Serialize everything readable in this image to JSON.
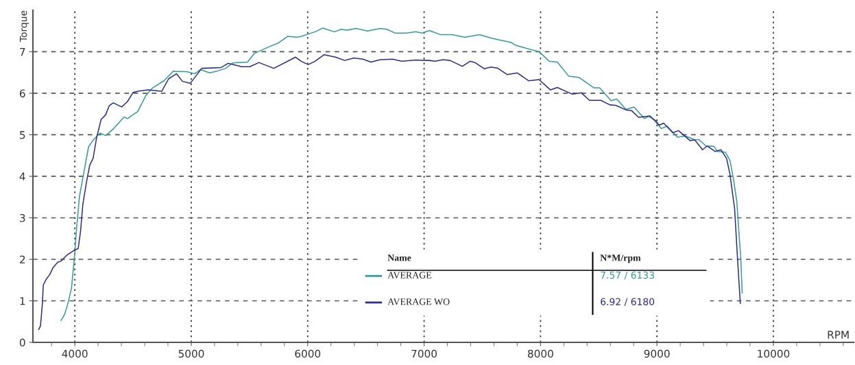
{
  "chart_data": {
    "type": "line",
    "xlabel": "RPM",
    "ylabel": "Torque",
    "xlim": [
      3640,
      10690
    ],
    "ylim": [
      0,
      8
    ],
    "xticks": [
      {
        "value": 3800,
        "label": null
      },
      4000,
      {
        "value": 4200,
        "label": null
      },
      {
        "value": 4400,
        "label": null
      },
      {
        "value": 4600,
        "label": null
      },
      {
        "value": 4800,
        "label": null
      },
      5000,
      {
        "value": 5200,
        "label": null
      },
      {
        "value": 5400,
        "label": null
      },
      {
        "value": 5600,
        "label": null
      },
      {
        "value": 5800,
        "label": null
      },
      6000,
      {
        "value": 6200,
        "label": null
      },
      {
        "value": 6400,
        "label": null
      },
      {
        "value": 6600,
        "label": null
      },
      {
        "value": 6800,
        "label": null
      },
      7000,
      {
        "value": 7200,
        "label": null
      },
      {
        "value": 7400,
        "label": null
      },
      {
        "value": 7600,
        "label": null
      },
      {
        "value": 7800,
        "label": null
      },
      8000,
      {
        "value": 8200,
        "label": null
      },
      {
        "value": 8400,
        "label": null
      },
      {
        "value": 8600,
        "label": null
      },
      {
        "value": 8800,
        "label": null
      },
      9000,
      {
        "value": 9200,
        "label": null
      },
      {
        "value": 9400,
        "label": null
      },
      {
        "value": 9600,
        "label": null
      },
      {
        "value": 9800,
        "label": null
      },
      10000,
      {
        "value": 10200,
        "label": null
      },
      {
        "value": 10400,
        "label": null
      },
      {
        "value": 10600,
        "label": null
      }
    ],
    "yticks": [
      0,
      1,
      2,
      3,
      4,
      5,
      6,
      7
    ],
    "grid": true,
    "legend": "bottom",
    "marker": "none",
    "line_style": "solid",
    "annotations": [
      "Name",
      "N*M/rpm",
      "7.57 / 6133",
      "6.92 / 6180"
    ],
    "series": [
      {
        "name": "AVERAGE",
        "color": "#2e9e96",
        "x": [
          3882,
          3912,
          3941,
          3971,
          3996,
          4016,
          4039,
          4078,
          4118,
          4157,
          4216,
          4265,
          4334,
          4423,
          4452,
          4540,
          4609,
          4668,
          4766,
          4845,
          4962,
          5031,
          5080,
          5159,
          5218,
          5296,
          5355,
          5483,
          5542,
          5669,
          5748,
          5827,
          5905,
          5945,
          6063,
          6131,
          6229,
          6288,
          6338,
          6416,
          6514,
          6622,
          6681,
          6750,
          6848,
          6927,
          6986,
          7045,
          7143,
          7241,
          7349,
          7477,
          7575,
          7653,
          7742,
          7791,
          7987,
          8076,
          8144,
          8243,
          8331,
          8459,
          8508,
          8606,
          8655,
          8734,
          8803,
          8891,
          8940,
          8989,
          9038,
          9087,
          9176,
          9245,
          9323,
          9362,
          9421,
          9490,
          9520,
          9588,
          9627,
          9657,
          9686,
          9706,
          9720,
          9732
        ],
        "values": [
          0.53,
          0.67,
          0.94,
          1.3,
          2.02,
          2.78,
          3.5,
          4.1,
          4.71,
          4.87,
          5.04,
          4.98,
          5.15,
          5.43,
          5.39,
          5.56,
          5.94,
          6.13,
          6.3,
          6.53,
          6.52,
          6.47,
          6.57,
          6.49,
          6.53,
          6.6,
          6.73,
          6.75,
          6.96,
          7.12,
          7.21,
          7.37,
          7.35,
          7.37,
          7.48,
          7.57,
          7.48,
          7.54,
          7.52,
          7.56,
          7.5,
          7.56,
          7.54,
          7.45,
          7.45,
          7.48,
          7.45,
          7.51,
          7.41,
          7.41,
          7.35,
          7.41,
          7.33,
          7.28,
          7.23,
          7.15,
          7.0,
          6.77,
          6.75,
          6.41,
          6.38,
          6.13,
          6.13,
          5.82,
          5.86,
          5.61,
          5.67,
          5.39,
          5.46,
          5.31,
          5.15,
          5.21,
          4.94,
          4.97,
          4.88,
          4.88,
          4.73,
          4.72,
          4.6,
          4.58,
          4.38,
          3.94,
          3.39,
          2.57,
          2.02,
          1.19
        ]
      },
      {
        "name": "AVERAGE WO",
        "color": "#2a2a9a",
        "x": [
          3690,
          3705,
          3721,
          3729,
          3754,
          3784,
          3813,
          3853,
          3882,
          3931,
          3990,
          4029,
          4049,
          4069,
          4102,
          4128,
          4157,
          4187,
          4226,
          4265,
          4295,
          4330,
          4403,
          4452,
          4501,
          4540,
          4629,
          4747,
          4806,
          4874,
          4923,
          4992,
          5090,
          5257,
          5316,
          5434,
          5503,
          5581,
          5709,
          5896,
          5945,
          6004,
          6063,
          6141,
          6239,
          6318,
          6397,
          6475,
          6544,
          6622,
          6730,
          6809,
          6927,
          7045,
          7094,
          7163,
          7222,
          7329,
          7394,
          7437,
          7516,
          7575,
          7634,
          7713,
          7801,
          7899,
          7987,
          8086,
          8144,
          8272,
          8351,
          8420,
          8518,
          8596,
          8645,
          8734,
          8783,
          8842,
          8930,
          8989,
          9018,
          9058,
          9136,
          9185,
          9284,
          9323,
          9392,
          9431,
          9499,
          9549,
          9598,
          9627,
          9667,
          9692,
          9716
        ],
        "values": [
          0.31,
          0.4,
          0.92,
          1.38,
          1.52,
          1.63,
          1.8,
          1.93,
          1.96,
          2.1,
          2.21,
          2.26,
          2.67,
          3.33,
          3.89,
          4.27,
          4.43,
          4.93,
          5.37,
          5.48,
          5.7,
          5.77,
          5.67,
          5.8,
          6.02,
          6.05,
          6.08,
          6.05,
          6.35,
          6.47,
          6.29,
          6.24,
          6.6,
          6.62,
          6.72,
          6.64,
          6.64,
          6.74,
          6.6,
          6.87,
          6.77,
          6.69,
          6.77,
          6.93,
          6.87,
          6.79,
          6.85,
          6.82,
          6.75,
          6.81,
          6.82,
          6.77,
          6.8,
          6.79,
          6.77,
          6.81,
          6.79,
          6.65,
          6.77,
          6.74,
          6.59,
          6.63,
          6.6,
          6.45,
          6.49,
          6.3,
          6.33,
          6.08,
          6.14,
          5.98,
          6.01,
          5.83,
          5.83,
          5.72,
          5.71,
          5.6,
          5.58,
          5.42,
          5.45,
          5.34,
          5.23,
          5.28,
          5.05,
          5.1,
          4.86,
          4.88,
          4.64,
          4.73,
          4.6,
          4.64,
          4.43,
          4.05,
          3.22,
          2.02,
          0.94
        ]
      }
    ]
  }
}
